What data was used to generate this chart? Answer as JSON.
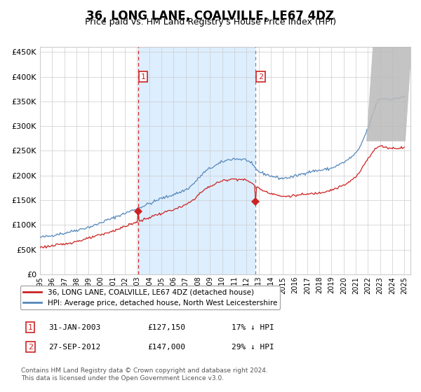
{
  "title": "36, LONG LANE, COALVILLE, LE67 4DZ",
  "subtitle": "Price paid vs. HM Land Registry's House Price Index (HPI)",
  "title_fontsize": 12,
  "subtitle_fontsize": 9,
  "ylim": [
    0,
    460000
  ],
  "yticks": [
    0,
    50000,
    100000,
    150000,
    200000,
    250000,
    300000,
    350000,
    400000,
    450000
  ],
  "ytick_labels": [
    "£0",
    "£50K",
    "£100K",
    "£150K",
    "£200K",
    "£250K",
    "£300K",
    "£350K",
    "£400K",
    "£450K"
  ],
  "hpi_color": "#5588bb",
  "price_color": "#cc2222",
  "purchase1_date": 2003.08,
  "purchase1_price": 127150,
  "purchase2_date": 2012.75,
  "purchase2_price": 147000,
  "vline1_color": "#cc2222",
  "vline2_color": "#888888",
  "shade_color": "#ddeeff",
  "legend_entry1": "36, LONG LANE, COALVILLE, LE67 4DZ (detached house)",
  "legend_entry2": "HPI: Average price, detached house, North West Leicestershire",
  "note1_label": "1",
  "note1_date": "31-JAN-2003",
  "note1_price": "£127,150",
  "note1_hpi": "17% ↓ HPI",
  "note2_label": "2",
  "note2_date": "27-SEP-2012",
  "note2_price": "£147,000",
  "note2_hpi": "29% ↓ HPI",
  "footer": "Contains HM Land Registry data © Crown copyright and database right 2024.\nThis data is licensed under the Open Government Licence v3.0.",
  "grid_color": "#cccccc",
  "background_color": "#ffffff"
}
